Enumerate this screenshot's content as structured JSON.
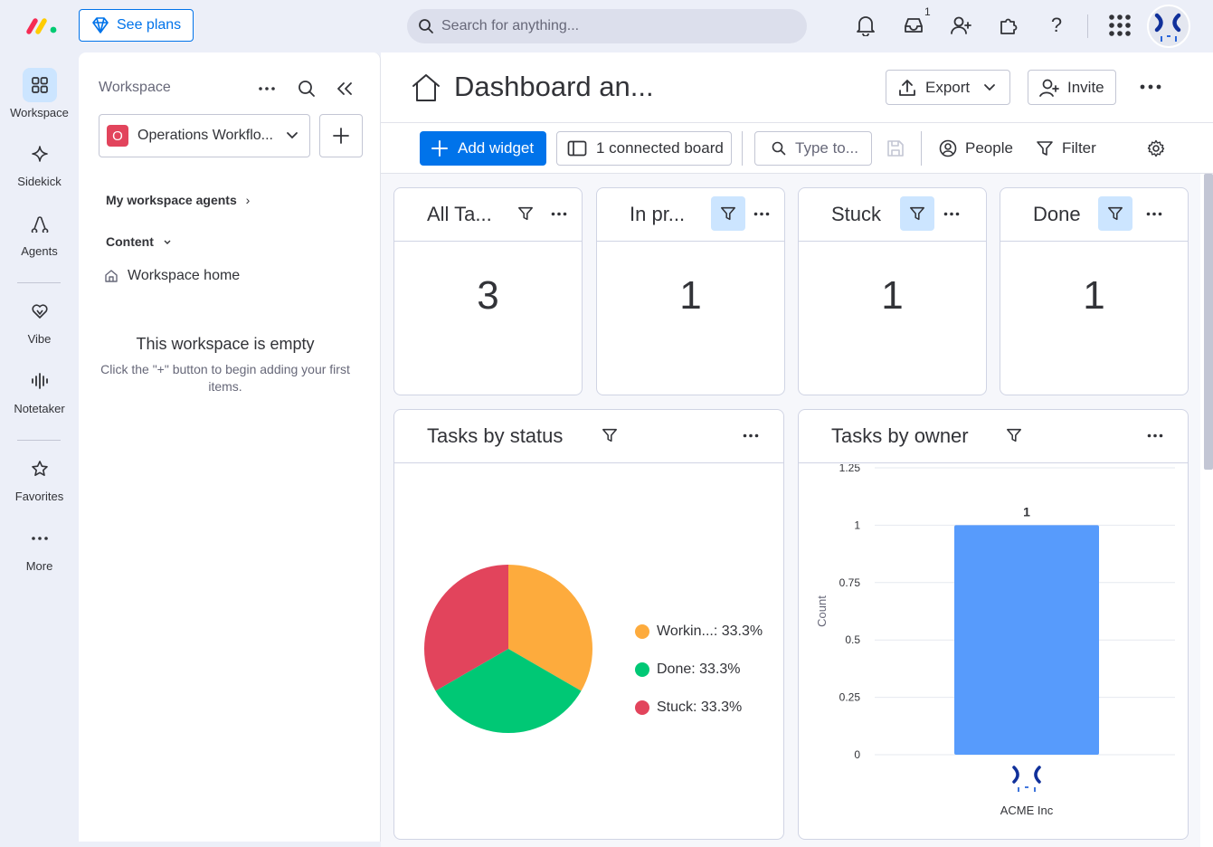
{
  "topbar": {
    "see_plans": "See plans",
    "search_placeholder": "Search for anything...",
    "inbox_count": "1",
    "icons": [
      "bell-icon",
      "inbox-icon",
      "invite-user-icon",
      "puzzle-icon",
      "help-icon",
      "apps-grid-icon"
    ]
  },
  "rail": {
    "items": [
      {
        "label": "Workspace",
        "icon": "workspace-grid-icon"
      },
      {
        "label": "Sidekick",
        "icon": "sparkle-icon"
      },
      {
        "label": "Agents",
        "icon": "agents-icon"
      },
      {
        "label": "Vibe",
        "icon": "heart-icon"
      },
      {
        "label": "Notetaker",
        "icon": "waveform-icon"
      },
      {
        "label": "Favorites",
        "icon": "star-icon"
      },
      {
        "label": "More",
        "icon": "more-dots-icon"
      }
    ]
  },
  "workspace": {
    "title": "Workspace",
    "selected_workspace": "Operations Workflo...",
    "workspace_initial": "O",
    "agents_label": "My workspace agents",
    "content_label": "Content",
    "home_label": "Workspace home",
    "empty_title": "This workspace is empty",
    "empty_text": "Click the \"+\" button to begin adding your first items."
  },
  "page": {
    "title": "Dashboard an...",
    "export_label": "Export",
    "invite_label": "Invite"
  },
  "toolbar": {
    "add_widget": "Add widget",
    "connected_board": "1 connected board",
    "type_placeholder": "Type to...",
    "people": "People",
    "filter": "Filter"
  },
  "numbers": [
    {
      "title": "All Ta...",
      "value": "3"
    },
    {
      "title": "In pr...",
      "value": "1"
    },
    {
      "title": "Stuck",
      "value": "1"
    },
    {
      "title": "Done",
      "value": "1"
    }
  ],
  "status_chart": {
    "title": "Tasks by status",
    "legend": [
      "Workin...: 33.3%",
      "Done: 33.3%",
      "Stuck: 33.3%"
    ]
  },
  "owner_chart": {
    "title": "Tasks by owner",
    "ylabel": "Count",
    "yticks": [
      "1.25",
      "1",
      "0.75",
      "0.5",
      "0.25",
      "0"
    ],
    "bar_label": "1",
    "xlabel": "ACME Inc"
  },
  "chart_data": [
    {
      "type": "pie",
      "title": "Tasks by status",
      "categories": [
        "Working on it",
        "Done",
        "Stuck"
      ],
      "values": [
        33.3,
        33.3,
        33.3
      ],
      "colors": [
        "#fdab3d",
        "#00c875",
        "#e2445c"
      ],
      "legend_position": "right"
    },
    {
      "type": "bar",
      "title": "Tasks by owner",
      "categories": [
        "ACME Inc"
      ],
      "values": [
        1
      ],
      "ylabel": "Count",
      "ylim": [
        0,
        1.25
      ],
      "grid": true,
      "color": "#579bfc"
    }
  ],
  "colors": {
    "primary": "#0073ea",
    "working": "#fdab3d",
    "done": "#00c875",
    "stuck": "#e2445c",
    "bar": "#579bfc"
  }
}
